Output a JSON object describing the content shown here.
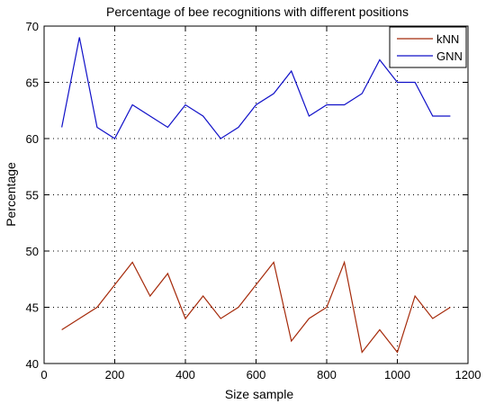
{
  "chart_data": {
    "type": "line",
    "title": "Percentage of bee recognitions with different positions",
    "xlabel": "Size sample",
    "ylabel": "Percentage",
    "xlim": [
      0,
      1200
    ],
    "ylim": [
      40,
      70
    ],
    "xticks": [
      0,
      200,
      400,
      600,
      800,
      1000,
      1200
    ],
    "yticks": [
      40,
      45,
      50,
      55,
      60,
      65,
      70
    ],
    "grid": true,
    "legend_position": "top-right",
    "x": [
      50,
      100,
      150,
      200,
      250,
      300,
      350,
      400,
      450,
      500,
      550,
      600,
      650,
      700,
      750,
      800,
      850,
      900,
      950,
      1000,
      1050,
      1100,
      1150
    ],
    "series": [
      {
        "name": "kNN",
        "color": "#a52a0a",
        "values": [
          43,
          44,
          45,
          47,
          49,
          46,
          48,
          44,
          46,
          44,
          45,
          47,
          49,
          42,
          44,
          45,
          49,
          41,
          43,
          41,
          46,
          44,
          45
        ]
      },
      {
        "name": "GNN",
        "color": "#1010c8",
        "values": [
          61,
          69,
          61,
          60,
          63,
          62,
          61,
          63,
          62,
          60,
          61,
          63,
          64,
          66,
          62,
          63,
          63,
          64,
          67,
          65,
          65,
          62,
          62
        ]
      }
    ]
  }
}
